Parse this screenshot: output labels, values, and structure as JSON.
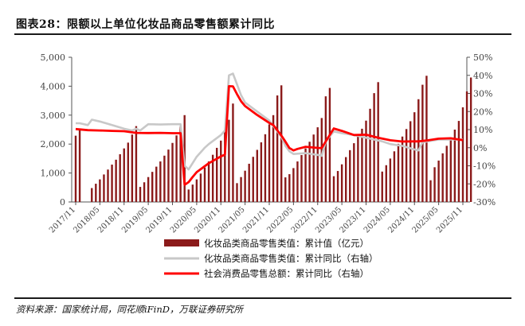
{
  "title": "图表28：限额以上单位化妆品商品零售额累计同比",
  "source": "资料来源：国家统计局，同花顺iFinD，万联证券研究所",
  "chart_data": {
    "type": "bar+line",
    "y_left": {
      "ticks": [
        "5,000",
        "4,000",
        "3,000",
        "2,000",
        "1,000",
        "0"
      ],
      "lim": [
        0,
        5000
      ]
    },
    "y_right": {
      "ticks": [
        "50%",
        "40%",
        "30%",
        "20%",
        "10%",
        "0%",
        "-10%",
        "-20%",
        "-30%"
      ],
      "lim": [
        -30,
        50
      ]
    },
    "x_ticks": [
      "2017/11",
      "2018/05",
      "2018/11",
      "2019/05",
      "2019/11",
      "2020/05",
      "2020/11",
      "2021/05",
      "2021/11",
      "2022/05",
      "2022/11",
      "2023/05",
      "2023/11",
      "2024/05",
      "2024/11",
      "2025/05",
      "2025/11"
    ],
    "legend": [
      {
        "label": "化妆品类商品零售类值：累计值（亿元）",
        "color": "#8b1a1a",
        "kind": "bar"
      },
      {
        "label": "化妆品类商品零售类值：累计同比（右轴）",
        "color": "#c8c8c8",
        "kind": "line"
      },
      {
        "label": "社会消费品零售总额：累计同比（右轴）",
        "color": "#ff0000",
        "kind": "line"
      }
    ],
    "bar_years": [
      {
        "start": "2017-11",
        "values": [
          2290,
          2500
        ]
      },
      {
        "start": "2018-03",
        "values": [
          480,
          630,
          780,
          950,
          1120,
          1290,
          1460,
          1650,
          1850,
          2050,
          2330,
          2620
        ]
      },
      {
        "start": "2019-03",
        "values": [
          520,
          680,
          860,
          1040,
          1220,
          1400,
          1600,
          1810,
          2040,
          2300,
          2610,
          3000
        ]
      },
      {
        "start": "2020-03",
        "values": [
          430,
          600,
          780,
          980,
          1190,
          1400,
          1630,
          1870,
          2120,
          2450,
          2840,
          3400
        ]
      },
      {
        "start": "2021-03",
        "values": [
          650,
          860,
          1080,
          1320,
          1560,
          1800,
          2060,
          2340,
          2680,
          3000,
          3680,
          4030
        ]
      },
      {
        "start": "2022-03",
        "values": [
          850,
          960,
          1170,
          1400,
          1620,
          1850,
          2080,
          2330,
          2580,
          2900,
          3650,
          3940
        ]
      },
      {
        "start": "2023-03",
        "values": [
          890,
          1070,
          1300,
          1550,
          1790,
          2030,
          2270,
          2530,
          2810,
          3220,
          3760,
          4140
        ]
      },
      {
        "start": "2024-03",
        "values": [
          1050,
          1270,
          1500,
          1750,
          2010,
          2260,
          2520,
          2790,
          3100,
          3550,
          4050,
          4360
        ]
      },
      {
        "start": "2025-03",
        "values": [
          750,
          1200,
          1430,
          1680,
          1940,
          2200,
          2500,
          2800,
          3270,
          3820,
          4300
        ]
      }
    ],
    "cosmetics_yoy": [
      [
        "2017-11",
        13.5
      ],
      [
        "2017-12",
        13.5
      ],
      [
        "2018-02",
        12.5
      ],
      [
        "2018-03",
        15.5
      ],
      [
        "2018-05",
        14.5
      ],
      [
        "2018-08",
        12.5
      ],
      [
        "2018-11",
        10.5
      ],
      [
        "2019-01",
        9.5
      ],
      [
        "2019-02",
        10.5
      ],
      [
        "2019-03",
        9.5
      ],
      [
        "2019-05",
        13
      ],
      [
        "2019-08",
        12.8
      ],
      [
        "2019-11",
        13
      ],
      [
        "2020-01",
        13
      ],
      [
        "2020-02",
        -10
      ],
      [
        "2020-03",
        -12
      ],
      [
        "2020-05",
        -5
      ],
      [
        "2020-07",
        0
      ],
      [
        "2020-08",
        2
      ],
      [
        "2020-11",
        7
      ],
      [
        "2020-12",
        9.5
      ],
      [
        "2021-01",
        40
      ],
      [
        "2021-02",
        41
      ],
      [
        "2021-03",
        35
      ],
      [
        "2021-04",
        29
      ],
      [
        "2021-05",
        25
      ],
      [
        "2021-08",
        20
      ],
      [
        "2021-11",
        15
      ],
      [
        "2022-02",
        6
      ],
      [
        "2022-03",
        1
      ],
      [
        "2022-04",
        -2
      ],
      [
        "2022-05",
        -3.5
      ],
      [
        "2022-08",
        -3
      ],
      [
        "2022-11",
        -4
      ],
      [
        "2022-12",
        -4.5
      ],
      [
        "2023-01",
        3.5
      ],
      [
        "2023-03",
        9
      ],
      [
        "2023-05",
        8
      ],
      [
        "2023-08",
        7
      ],
      [
        "2023-11",
        5.5
      ],
      [
        "2023-12",
        5
      ],
      [
        "2024-03",
        3.5
      ],
      [
        "2024-05",
        2
      ],
      [
        "2024-08",
        1
      ],
      [
        "2024-11",
        -1
      ],
      [
        "2024-12",
        -1.5
      ],
      [
        "2025-01",
        3
      ],
      [
        "2025-05",
        4.5
      ],
      [
        "2025-11",
        4.5
      ]
    ],
    "retail_yoy": [
      [
        "2017-11",
        10.3
      ],
      [
        "2018-02",
        9.7
      ],
      [
        "2018-05",
        9.5
      ],
      [
        "2018-08",
        9.3
      ],
      [
        "2018-11",
        9.1
      ],
      [
        "2019-02",
        8.2
      ],
      [
        "2019-05",
        8.1
      ],
      [
        "2019-08",
        8.2
      ],
      [
        "2019-11",
        8.0
      ],
      [
        "2020-01",
        8.0
      ],
      [
        "2020-02",
        -20.5
      ],
      [
        "2020-03",
        -19
      ],
      [
        "2020-04",
        -16.2
      ],
      [
        "2020-05",
        -13.5
      ],
      [
        "2020-08",
        -8.6
      ],
      [
        "2020-11",
        -4.8
      ],
      [
        "2020-12",
        -3.9
      ],
      [
        "2021-01",
        34
      ],
      [
        "2021-02",
        33.9
      ],
      [
        "2021-03",
        29.6
      ],
      [
        "2021-04",
        25.7
      ],
      [
        "2021-05",
        23.0
      ],
      [
        "2021-08",
        18.1
      ],
      [
        "2021-11",
        13.7
      ],
      [
        "2021-12",
        12.5
      ],
      [
        "2022-02",
        6.7
      ],
      [
        "2022-03",
        3.3
      ],
      [
        "2022-04",
        -0.2
      ],
      [
        "2022-05",
        -1.5
      ],
      [
        "2022-06",
        -0.7
      ],
      [
        "2022-08",
        0.5
      ],
      [
        "2022-11",
        -0.1
      ],
      [
        "2022-12",
        -0.2
      ],
      [
        "2023-01",
        3.5
      ],
      [
        "2023-03",
        10.6
      ],
      [
        "2023-05",
        9.3
      ],
      [
        "2023-08",
        7.0
      ],
      [
        "2023-11",
        7.2
      ],
      [
        "2024-02",
        5.5
      ],
      [
        "2024-05",
        4.1
      ],
      [
        "2024-08",
        3.4
      ],
      [
        "2024-11",
        3.5
      ],
      [
        "2024-12",
        3.5
      ],
      [
        "2025-02",
        4.0
      ],
      [
        "2025-05",
        5.0
      ],
      [
        "2025-08",
        5.2
      ],
      [
        "2025-11",
        4.2
      ]
    ]
  }
}
